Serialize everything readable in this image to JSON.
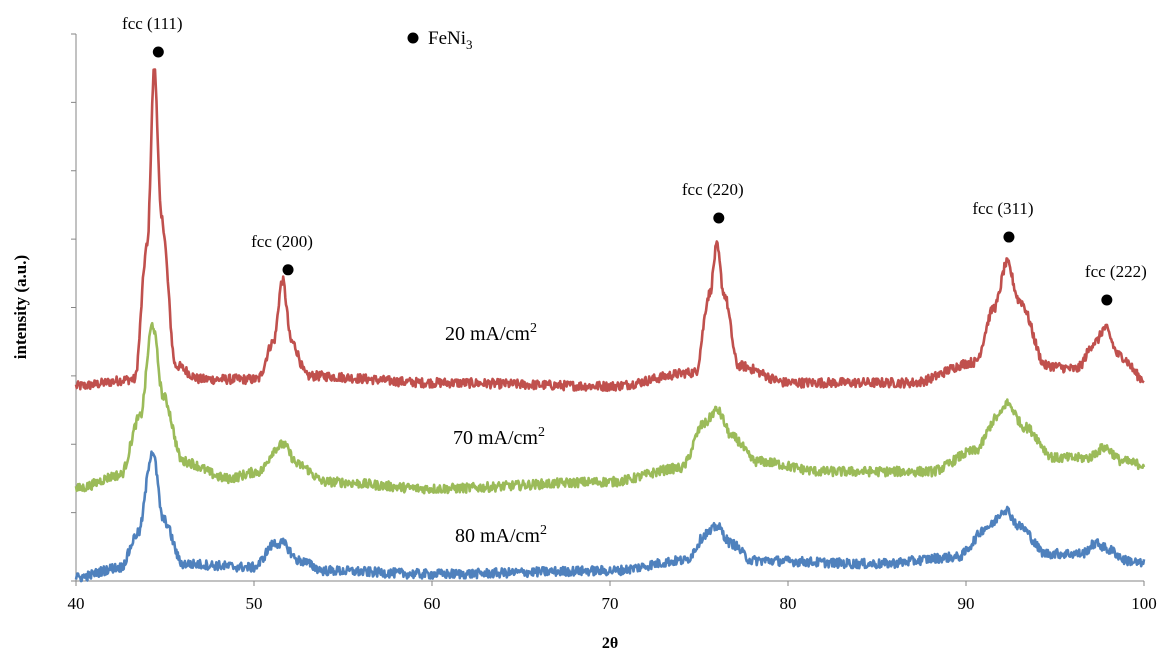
{
  "chart_data": {
    "type": "line",
    "xlabel": "2θ",
    "ylabel": "intensity (a.u.)",
    "xlim": [
      40,
      100
    ],
    "ylim": [
      0,
      8
    ],
    "x_ticks": [
      "40",
      "50",
      "60",
      "70",
      "80",
      "90",
      "100"
    ],
    "y_ticks_shown": false,
    "grid": false,
    "legend": {
      "marker_label_prefix": "FeNi",
      "marker_label_subscript": "3",
      "colors": {
        "marker": "#000000"
      }
    },
    "peaks": [
      {
        "label": "fcc (111)",
        "x": 44.4
      },
      {
        "label": "fcc (200)",
        "x": 51.8
      },
      {
        "label": "fcc (220)",
        "x": 76.0
      },
      {
        "label": "fcc (311)",
        "x": 92.3
      },
      {
        "label": "fcc (222)",
        "x": 97.8
      }
    ],
    "series": [
      {
        "label_prefix": "20 mA/cm",
        "label_superscript": "2",
        "color": "#c0504d",
        "baseline": 2.85,
        "points": [
          [
            40,
            2.85
          ],
          [
            43.3,
            2.95
          ],
          [
            44.0,
            4.9
          ],
          [
            44.4,
            7.5
          ],
          [
            44.8,
            5.3
          ],
          [
            45.6,
            3.15
          ],
          [
            47,
            2.95
          ],
          [
            50.2,
            2.95
          ],
          [
            51.1,
            3.5
          ],
          [
            51.6,
            4.4
          ],
          [
            52.1,
            3.5
          ],
          [
            53,
            3.0
          ],
          [
            60,
            2.9
          ],
          [
            70,
            2.85
          ],
          [
            74.8,
            3.05
          ],
          [
            75.6,
            4.2
          ],
          [
            76.0,
            4.9
          ],
          [
            76.4,
            4.2
          ],
          [
            77.2,
            3.15
          ],
          [
            80,
            2.9
          ],
          [
            87,
            2.9
          ],
          [
            90.5,
            3.2
          ],
          [
            91.6,
            4.0
          ],
          [
            92.3,
            4.65
          ],
          [
            93.0,
            4.1
          ],
          [
            94.5,
            3.15
          ],
          [
            96.2,
            3.1
          ],
          [
            97.3,
            3.5
          ],
          [
            97.8,
            3.7
          ],
          [
            98.6,
            3.3
          ],
          [
            100,
            2.95
          ]
        ]
      },
      {
        "label_prefix": "70 mA/cm",
        "label_superscript": "2",
        "color": "#9bbb59",
        "baseline": 1.35,
        "points": [
          [
            40,
            1.35
          ],
          [
            42.5,
            1.55
          ],
          [
            43.6,
            2.4
          ],
          [
            44.3,
            3.75
          ],
          [
            44.9,
            2.7
          ],
          [
            46,
            1.75
          ],
          [
            48.5,
            1.5
          ],
          [
            50.3,
            1.6
          ],
          [
            51.3,
            1.95
          ],
          [
            51.6,
            2.0
          ],
          [
            52.5,
            1.7
          ],
          [
            54,
            1.45
          ],
          [
            60,
            1.35
          ],
          [
            70,
            1.45
          ],
          [
            74.0,
            1.65
          ],
          [
            75.3,
            2.3
          ],
          [
            76.0,
            2.5
          ],
          [
            76.9,
            2.1
          ],
          [
            78.2,
            1.75
          ],
          [
            82,
            1.6
          ],
          [
            88,
            1.6
          ],
          [
            90.5,
            1.9
          ],
          [
            91.8,
            2.4
          ],
          [
            92.3,
            2.6
          ],
          [
            93.3,
            2.25
          ],
          [
            95,
            1.8
          ],
          [
            96.8,
            1.8
          ],
          [
            97.8,
            1.95
          ],
          [
            98.8,
            1.75
          ],
          [
            100,
            1.7
          ]
        ]
      },
      {
        "label_prefix": "80 mA/cm",
        "label_superscript": "2",
        "color": "#4f81bd",
        "baseline": 0.05,
        "points": [
          [
            40,
            0.05
          ],
          [
            42.5,
            0.2
          ],
          [
            43.5,
            0.7
          ],
          [
            44.3,
            1.9
          ],
          [
            44.9,
            0.9
          ],
          [
            46,
            0.25
          ],
          [
            50,
            0.2
          ],
          [
            51.2,
            0.55
          ],
          [
            51.6,
            0.55
          ],
          [
            52.5,
            0.3
          ],
          [
            54,
            0.15
          ],
          [
            60,
            0.1
          ],
          [
            70,
            0.15
          ],
          [
            74.2,
            0.3
          ],
          [
            75.5,
            0.7
          ],
          [
            76.0,
            0.8
          ],
          [
            76.8,
            0.55
          ],
          [
            78,
            0.3
          ],
          [
            85,
            0.25
          ],
          [
            89.5,
            0.35
          ],
          [
            91.3,
            0.8
          ],
          [
            92.2,
            1.05
          ],
          [
            93.0,
            0.8
          ],
          [
            94.5,
            0.4
          ],
          [
            96.5,
            0.4
          ],
          [
            97.3,
            0.55
          ],
          [
            98.1,
            0.45
          ],
          [
            99,
            0.3
          ],
          [
            100,
            0.25
          ]
        ]
      }
    ]
  }
}
